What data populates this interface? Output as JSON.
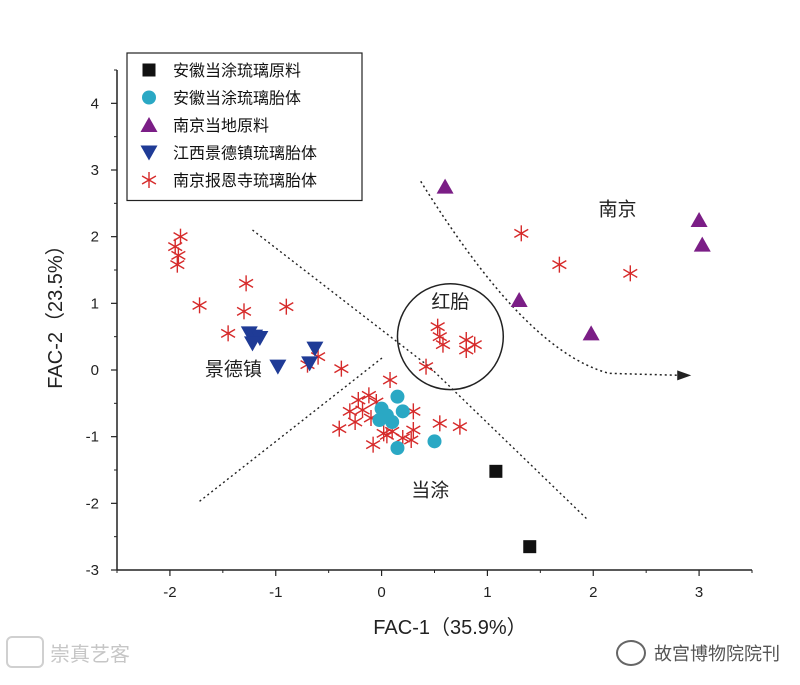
{
  "chart_data": {
    "type": "scatter",
    "xlabel": "FAC-1（35.9%）",
    "ylabel": "FAC-2（23.5%）",
    "xlim": [
      -2.5,
      3.5
    ],
    "ylim": [
      -3,
      4.5
    ],
    "xticks": [
      "-2",
      "-1",
      "0",
      "1",
      "2",
      "3"
    ],
    "yticks": [
      "-3",
      "-2",
      "-1",
      "0",
      "1",
      "2",
      "3",
      "4"
    ],
    "grid": false,
    "legend_position": "top-left",
    "series": [
      {
        "name": "安徽当涂琉璃原料",
        "marker": "square",
        "color": "#111111",
        "points": [
          [
            1.08,
            -1.52
          ],
          [
            1.4,
            -2.65
          ]
        ]
      },
      {
        "name": "安徽当涂琉璃胎体",
        "marker": "circle",
        "color": "#2aa8c4",
        "points": [
          [
            0.15,
            -0.4
          ],
          [
            0.0,
            -0.58
          ],
          [
            0.05,
            -0.68
          ],
          [
            0.1,
            -0.78
          ],
          [
            -0.02,
            -0.75
          ],
          [
            0.15,
            -1.17
          ],
          [
            0.5,
            -1.07
          ],
          [
            0.2,
            -0.62
          ]
        ]
      },
      {
        "name": "南京当地原料",
        "marker": "triangle-up",
        "color": "#7b1e86",
        "points": [
          [
            0.6,
            2.75
          ],
          [
            3.0,
            2.25
          ],
          [
            3.03,
            1.88
          ],
          [
            1.3,
            1.05
          ],
          [
            1.98,
            0.55
          ]
        ]
      },
      {
        "name": "江西景德镇琉璃胎体",
        "marker": "triangle-down",
        "color": "#1f3b96",
        "points": [
          [
            -1.25,
            0.55
          ],
          [
            -1.2,
            0.5
          ],
          [
            -1.15,
            0.48
          ],
          [
            -1.22,
            0.4
          ],
          [
            -0.98,
            0.05
          ],
          [
            -0.63,
            0.32
          ],
          [
            -0.68,
            0.1
          ]
        ]
      },
      {
        "name": "南京报恩寺琉璃胎体",
        "marker": "asterisk",
        "color": "#d62a2a",
        "points": [
          [
            -1.9,
            2.0
          ],
          [
            -1.95,
            1.85
          ],
          [
            -1.92,
            1.72
          ],
          [
            -1.93,
            1.58
          ],
          [
            -1.72,
            0.97
          ],
          [
            -1.45,
            0.55
          ],
          [
            -1.28,
            1.3
          ],
          [
            -1.3,
            0.88
          ],
          [
            -0.9,
            0.95
          ],
          [
            -0.7,
            0.08
          ],
          [
            -0.6,
            0.2
          ],
          [
            -0.38,
            0.02
          ],
          [
            1.32,
            2.05
          ],
          [
            1.68,
            1.58
          ],
          [
            2.35,
            1.45
          ],
          [
            0.53,
            0.65
          ],
          [
            0.55,
            0.5
          ],
          [
            0.58,
            0.38
          ],
          [
            0.8,
            0.45
          ],
          [
            0.8,
            0.3
          ],
          [
            0.88,
            0.38
          ],
          [
            0.42,
            0.05
          ],
          [
            -0.22,
            -0.45
          ],
          [
            -0.18,
            -0.6
          ],
          [
            -0.12,
            -0.38
          ],
          [
            -0.3,
            -0.62
          ],
          [
            -0.4,
            -0.88
          ],
          [
            -0.25,
            -0.78
          ],
          [
            -0.1,
            -0.72
          ],
          [
            -0.05,
            -0.48
          ],
          [
            0.05,
            -0.98
          ],
          [
            -0.08,
            -1.12
          ],
          [
            0.02,
            -0.95
          ],
          [
            0.3,
            -0.62
          ],
          [
            0.3,
            -0.9
          ],
          [
            0.2,
            -1.02
          ],
          [
            0.1,
            -0.92
          ],
          [
            0.55,
            -0.8
          ],
          [
            0.74,
            -0.85
          ],
          [
            0.28,
            -1.05
          ],
          [
            0.08,
            -0.15
          ]
        ]
      }
    ],
    "annotations": [
      {
        "text": "南京",
        "x": 2.05,
        "y": 2.32
      },
      {
        "text": "红胎",
        "x": 0.47,
        "y": 0.93
      },
      {
        "text": "景德镇",
        "x": -1.67,
        "y": -0.08
      },
      {
        "text": "当涂",
        "x": 0.28,
        "y": -1.9
      }
    ],
    "dotted_lines": [
      [
        [
          -1.22,
          2.1
        ],
        [
          0.45,
          0.05
        ],
        [
          1.95,
          -2.25
        ]
      ],
      [
        [
          -1.72,
          -1.97
        ],
        [
          0.02,
          0.2
        ]
      ]
    ],
    "circle": {
      "cx": 0.65,
      "cy": 0.5,
      "rx": 0.5
    },
    "arrow": [
      [
        0.37,
        2.83
      ],
      [
        0.95,
        1.35
      ],
      [
        1.55,
        0.2
      ],
      [
        2.15,
        -0.05
      ],
      [
        2.82,
        -0.08
      ],
      [
        2.85,
        -0.08
      ]
    ]
  },
  "watermarks": {
    "left": "崇真艺客",
    "right": "故宫博物院院刊"
  }
}
